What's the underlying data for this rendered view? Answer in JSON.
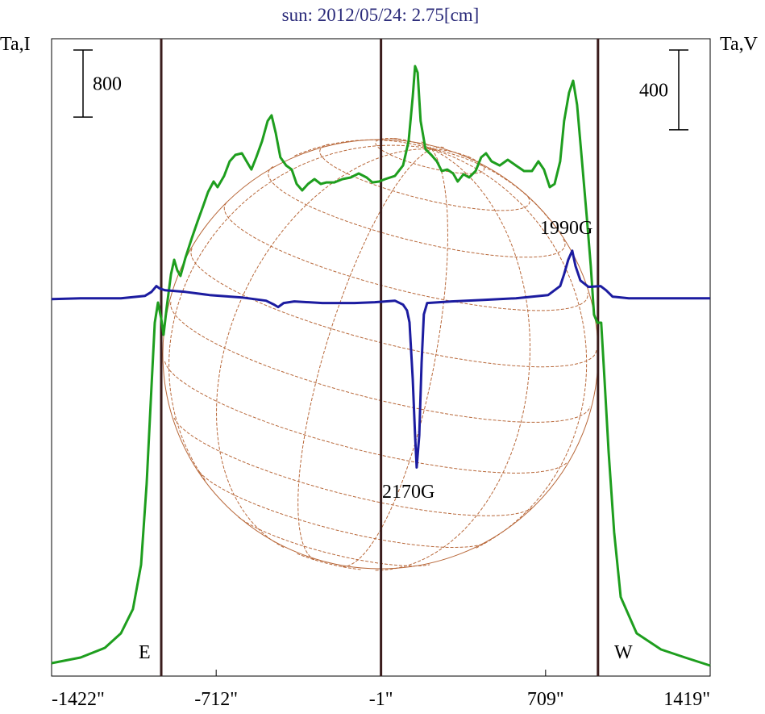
{
  "chart_data": {
    "type": "line",
    "title": "sun: 2012/05/24: 2.75[cm]",
    "ylabel": "Ta,I",
    "y2label": "Ta,V",
    "xlim": [
      -1422,
      1419
    ],
    "xticks": [
      {
        "value": -1422,
        "label": "-1422\""
      },
      {
        "value": -712,
        "label": "-712\""
      },
      {
        "value": -1,
        "label": "-1\""
      },
      {
        "value": 709,
        "label": "709\""
      },
      {
        "value": 1419,
        "label": "1419\""
      }
    ],
    "ylim": [
      0,
      7600
    ],
    "y2lim": [
      -1890,
      1305
    ],
    "scale_bar_y": 800,
    "scale_bar_y2": 400,
    "vlines": [
      -949,
      -1,
      935
    ],
    "vline_color": "#3a1c1c",
    "limb_labels": [
      "E",
      "W"
    ],
    "annotations": [
      "1990G",
      "2170G"
    ],
    "disk_color": "#b8683a",
    "series": [
      {
        "name": "I",
        "color": "#1e9e1e",
        "x": [
          -1422,
          -1297,
          -1192,
          -1123,
          -1071,
          -1036,
          -1012,
          -991,
          -977,
          -963,
          -949,
          -939,
          -925,
          -907,
          -893,
          -880,
          -866,
          -845,
          -817,
          -793,
          -768,
          -747,
          -723,
          -706,
          -678,
          -654,
          -629,
          -601,
          -581,
          -560,
          -539,
          -514,
          -490,
          -473,
          -455,
          -435,
          -410,
          -386,
          -365,
          -341,
          -316,
          -288,
          -261,
          -236,
          -202,
          -167,
          -132,
          -97,
          -63,
          -38,
          -10,
          17,
          59,
          94,
          118,
          136,
          146,
          157,
          170,
          191,
          216,
          240,
          261,
          285,
          310,
          330,
          355,
          379,
          407,
          431,
          452,
          476,
          511,
          546,
          581,
          616,
          650,
          678,
          702,
          727,
          748,
          772,
          789,
          810,
          828,
          845,
          866,
          887,
          904,
          918,
          932,
          949,
          963,
          981,
          1005,
          1033,
          1102,
          1207,
          1311,
          1419
        ],
        "values": [
          154,
          221,
          337,
          510,
          798,
          1328,
          2290,
          3444,
          4214,
          4454,
          4262,
          4069,
          4406,
          4791,
          4964,
          4839,
          4772,
          4983,
          5224,
          5416,
          5608,
          5772,
          5897,
          5830,
          5964,
          6138,
          6215,
          6234,
          6138,
          6041,
          6186,
          6378,
          6619,
          6686,
          6474,
          6186,
          6089,
          6041,
          5868,
          5791,
          5868,
          5926,
          5868,
          5887,
          5887,
          5926,
          5945,
          5993,
          5945,
          5887,
          5897,
          5926,
          5964,
          6089,
          6378,
          6907,
          7273,
          7196,
          6619,
          6282,
          6215,
          6138,
          6022,
          6041,
          5993,
          5897,
          5984,
          5945,
          6022,
          6186,
          6234,
          6138,
          6089,
          6157,
          6089,
          6022,
          6022,
          6138,
          6041,
          5830,
          5868,
          6138,
          6619,
          6955,
          7100,
          6811,
          6138,
          5464,
          4887,
          4310,
          4214,
          4214,
          3540,
          2674,
          1712,
          943,
          510,
          317,
          221,
          125
        ]
      },
      {
        "name": "V",
        "color": "#1c1ca0",
        "axis": "y2",
        "x": [
          -1422,
          -1297,
          -1123,
          -1019,
          -991,
          -970,
          -956,
          -932,
          -845,
          -741,
          -601,
          -497,
          -462,
          -445,
          -421,
          -375,
          -254,
          -115,
          -28,
          59,
          94,
          111,
          122,
          136,
          146,
          153,
          164,
          174,
          184,
          198,
          303,
          442,
          581,
          720,
          772,
          789,
          807,
          824,
          838,
          859,
          894,
          946,
          970,
          998,
          1068,
          1207,
          1419
        ],
        "values": [
          0,
          4,
          4,
          16,
          36,
          65,
          53,
          44,
          36,
          20,
          8,
          -8,
          -28,
          -40,
          -20,
          -12,
          -20,
          -20,
          -16,
          -8,
          -28,
          -57,
          -117,
          -400,
          -683,
          -844,
          -683,
          -319,
          -77,
          -20,
          -12,
          -4,
          4,
          20,
          65,
          125,
          198,
          242,
          166,
          93,
          61,
          65,
          44,
          12,
          4,
          4,
          4
        ]
      }
    ]
  }
}
